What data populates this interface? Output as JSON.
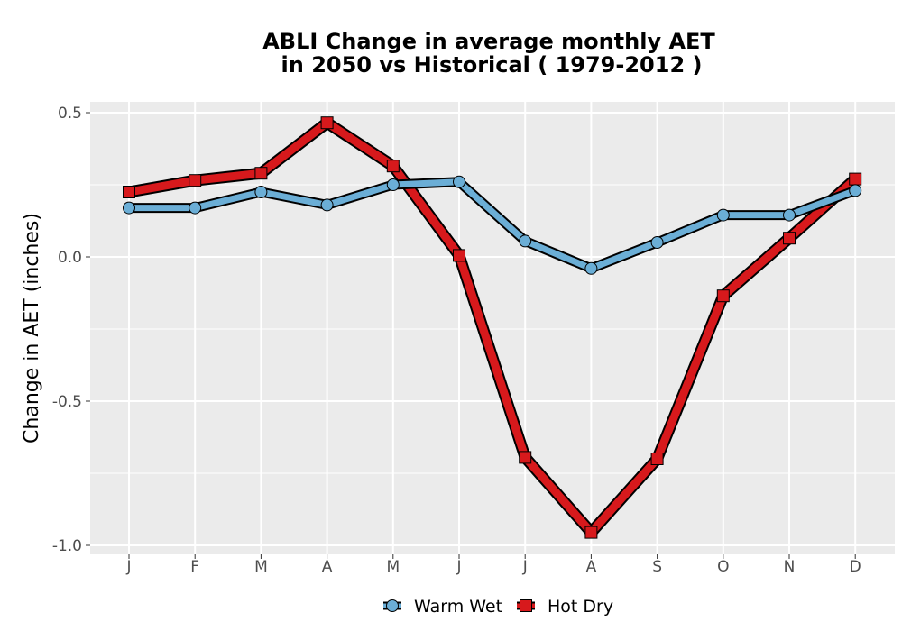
{
  "chart_data": {
    "type": "line",
    "title_line1": "ABLI  Change in average monthly AET",
    "title_line2": "in 2050 vs Historical ( 1979-2012 )",
    "xlabel": "",
    "ylabel": "Change in AET (inches)",
    "categories": [
      "J",
      "F",
      "M",
      "A",
      "M",
      "J",
      "J",
      "A",
      "S",
      "O",
      "N",
      "D"
    ],
    "ylim": [
      -1.0,
      0.5
    ],
    "yticks": [
      0.5,
      0.0,
      -0.5,
      -1.0
    ],
    "ytick_labels": [
      "0.5",
      "0.0",
      "-0.5",
      "-1.0"
    ],
    "grid": true,
    "legend_position": "bottom",
    "series": [
      {
        "name": "Warm Wet",
        "color": "#6baed6",
        "marker": "circle",
        "values": [
          0.17,
          0.17,
          0.225,
          0.18,
          0.25,
          0.26,
          0.055,
          -0.04,
          0.05,
          0.145,
          0.145,
          0.23
        ]
      },
      {
        "name": "Hot Dry",
        "color": "#d7191c",
        "marker": "square",
        "values": [
          0.225,
          0.265,
          0.29,
          0.465,
          0.315,
          0.005,
          -0.695,
          -0.955,
          -0.7,
          -0.135,
          0.065,
          0.27
        ]
      }
    ]
  }
}
